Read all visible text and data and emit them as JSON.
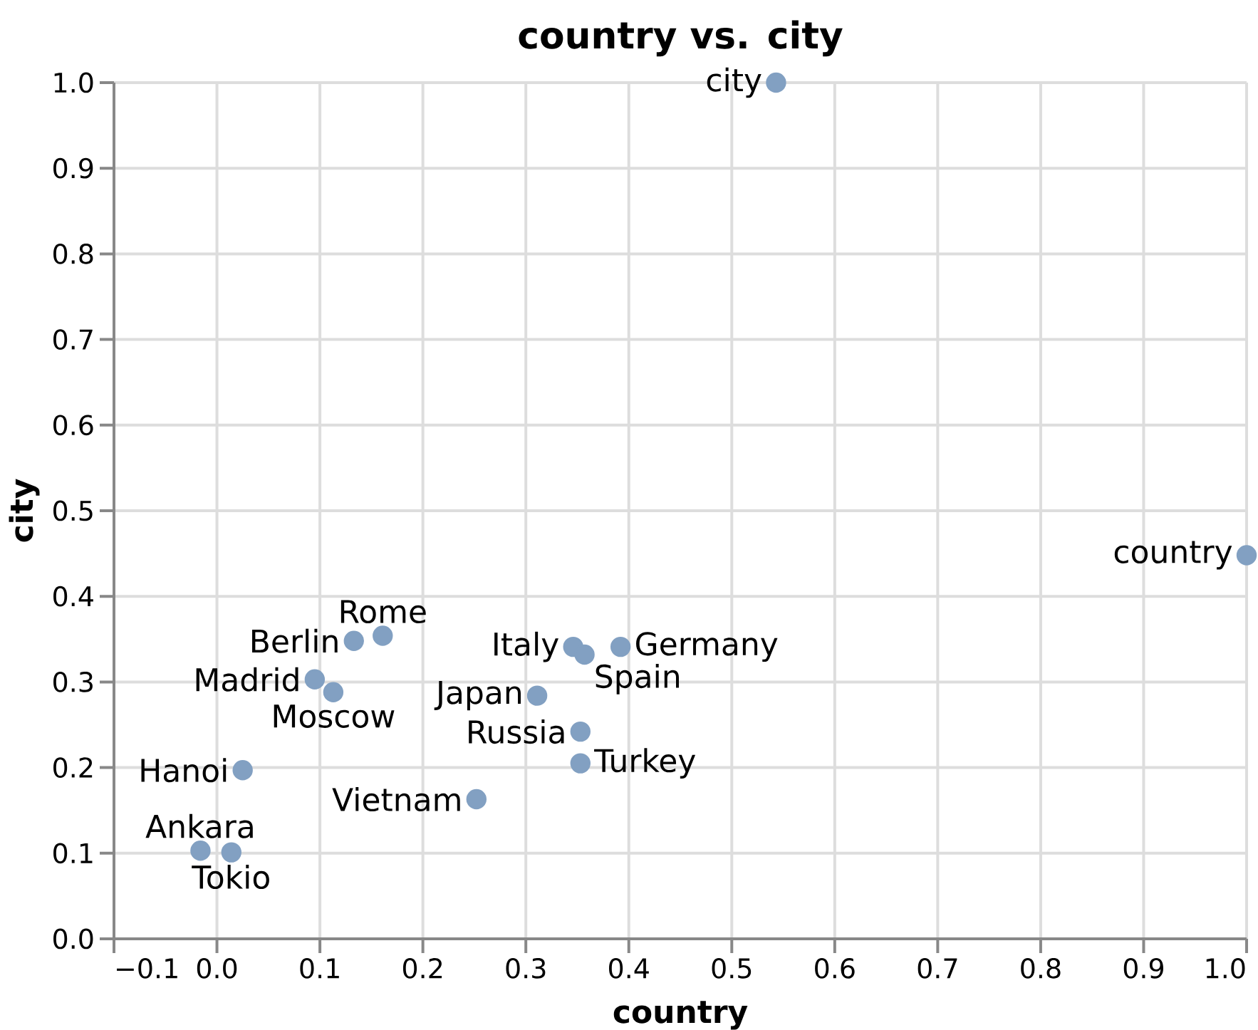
{
  "chart_data": {
    "type": "scatter",
    "title": "country vs. city",
    "xlabel": "country",
    "ylabel": "city",
    "x": [
      0.543,
      1.0,
      0.346,
      0.392,
      0.357,
      0.311,
      0.353,
      0.353,
      0.252,
      0.161,
      0.133,
      0.095,
      0.113,
      0.025,
      -0.016,
      0.014
    ],
    "values": [
      1.0,
      0.448,
      0.341,
      0.341,
      0.332,
      0.284,
      0.242,
      0.205,
      0.163,
      0.354,
      0.348,
      0.303,
      0.288,
      0.197,
      0.103,
      0.101
    ],
    "color": "#82a0c2",
    "marker": "circle",
    "grid": true,
    "xlim": [
      -0.1,
      1.0
    ],
    "ylim": [
      0,
      1.0
    ],
    "xticks": [
      {
        "value": -0.1,
        "label": "−0.1"
      },
      {
        "value": 0,
        "label": "0.0"
      },
      0.1,
      0.2,
      0.3,
      0.4,
      0.5,
      0.6,
      0.7,
      0.8,
      0.9,
      {
        "value": 1.0,
        "label": "1.0"
      }
    ],
    "yticks": [
      {
        "value": 0,
        "label": "0.0"
      },
      0.1,
      0.2,
      0.3,
      0.4,
      0.5,
      0.6,
      0.7,
      0.8,
      0.9,
      {
        "value": 1.0,
        "label": "1.0"
      }
    ],
    "annotations": [
      {
        "text": "city",
        "x": 0.543,
        "y": 1.0
      },
      {
        "text": "country",
        "x": 1.0,
        "y": 0.448
      },
      {
        "text": "Italy",
        "x": 0.346,
        "y": 0.341
      },
      {
        "text": "Germany",
        "x": 0.392,
        "y": 0.341
      },
      {
        "text": "Spain",
        "x": 0.357,
        "y": 0.332
      },
      {
        "text": "Japan",
        "x": 0.311,
        "y": 0.284
      },
      {
        "text": "Russia",
        "x": 0.353,
        "y": 0.242
      },
      {
        "text": "Turkey",
        "x": 0.353,
        "y": 0.205
      },
      {
        "text": "Vietnam",
        "x": 0.252,
        "y": 0.163
      },
      {
        "text": "Rome",
        "x": 0.161,
        "y": 0.354
      },
      {
        "text": "Berlin",
        "x": 0.133,
        "y": 0.348
      },
      {
        "text": "Madrid",
        "x": 0.095,
        "y": 0.303
      },
      {
        "text": "Moscow",
        "x": 0.113,
        "y": 0.288
      },
      {
        "text": "Hanoi",
        "x": 0.025,
        "y": 0.197
      },
      {
        "text": "Ankara",
        "x": -0.016,
        "y": 0.103
      },
      {
        "text": "Tokio",
        "x": 0.014,
        "y": 0.101
      }
    ]
  }
}
